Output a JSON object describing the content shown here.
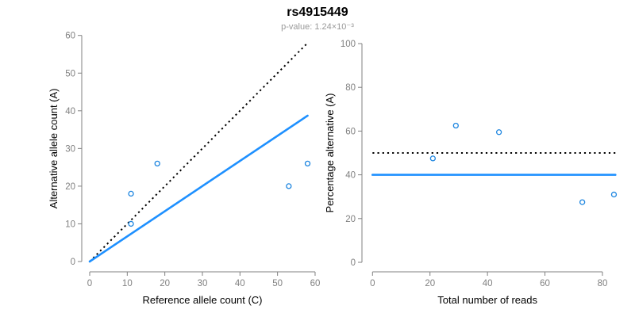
{
  "header": {
    "title": "rs4915449",
    "subtitle": "p-value: 1.24×10⁻³"
  },
  "colors": {
    "axis": "#808080",
    "tick_label": "#808080",
    "axis_title": "#000000",
    "point_stroke": "#1E86E0",
    "blue_line": "#1E90FF",
    "dotted_line": "#000000"
  },
  "chart_data": [
    {
      "type": "scatter",
      "name": "allele-counts-scatter",
      "xlabel": "Reference allele count (C)",
      "ylabel": "Alternative allele count (A)",
      "xlim": [
        0,
        60
      ],
      "ylim": [
        0,
        60
      ],
      "xticks": [
        0,
        10,
        20,
        30,
        40,
        50,
        60
      ],
      "yticks": [
        0,
        10,
        20,
        30,
        40,
        50,
        60
      ],
      "grid": false,
      "points": [
        [
          11,
          10
        ],
        [
          11,
          18
        ],
        [
          18,
          26
        ],
        [
          53,
          20
        ],
        [
          58,
          26
        ]
      ],
      "lines": [
        {
          "name": "identity-line",
          "style": "dotted",
          "color": "#000000",
          "x": [
            0,
            58
          ],
          "y": [
            0,
            58
          ]
        },
        {
          "name": "fitted-proportion-line",
          "style": "solid",
          "color": "#1E90FF",
          "x": [
            0,
            58
          ],
          "y": [
            0,
            38.7
          ]
        }
      ]
    },
    {
      "type": "scatter",
      "name": "percentage-vs-reads-scatter",
      "xlabel": "Total number of reads",
      "ylabel": "Percentage alternative (A)",
      "xlim": [
        0,
        85
      ],
      "ylim": [
        0,
        100
      ],
      "xticks": [
        0,
        20,
        40,
        60,
        80
      ],
      "yticks": [
        0,
        20,
        40,
        60,
        80,
        100
      ],
      "grid": false,
      "points": [
        [
          21,
          47.5
        ],
        [
          29,
          62.5
        ],
        [
          44,
          59.5
        ],
        [
          73,
          27.5
        ],
        [
          84,
          31
        ]
      ],
      "lines": [
        {
          "name": "null-50pct-line",
          "style": "dotted",
          "color": "#000000",
          "x": [
            0,
            84.5
          ],
          "y": [
            50,
            50
          ]
        },
        {
          "name": "estimated-40pct-line",
          "style": "solid",
          "color": "#1E90FF",
          "x": [
            0,
            84.5
          ],
          "y": [
            40,
            40
          ]
        }
      ]
    }
  ]
}
